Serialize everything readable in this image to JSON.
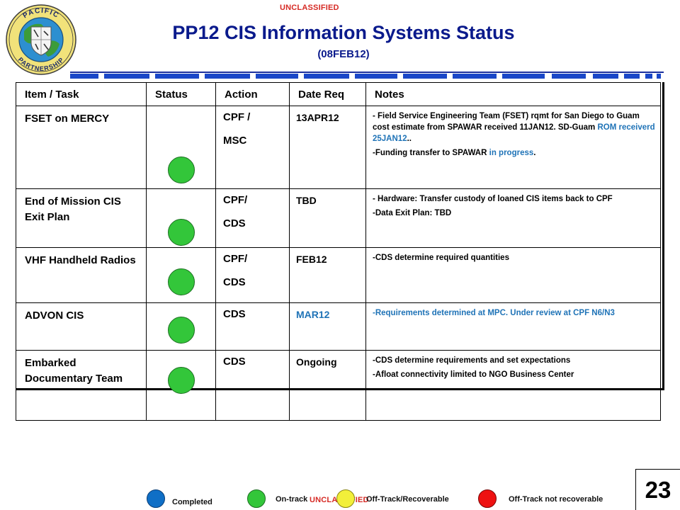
{
  "classification": {
    "top": "UNCLASSIFIED",
    "bottom": "UNCLASSIFIED"
  },
  "logo": {
    "text_top": "PACIFIC",
    "text_bottom": "PARTNERSHIP"
  },
  "header": {
    "title": "PP12 CIS Information Systems Status",
    "subtitle": "(08FEB12)"
  },
  "table": {
    "columns": [
      "Item / Task",
      "Status",
      "Action",
      "Date Req",
      "Notes"
    ],
    "rows": [
      {
        "item": "FSET on MERCY",
        "status": "On-track",
        "action": [
          "CPF /",
          "MSC"
        ],
        "date": "13APR12",
        "notes": [
          {
            "parts": [
              {
                "text": "- Field Service Engineering Team (FSET) rqmt   for San Diego to Guam cost estimate from SPAWAR received 11JAN12. SD-Guam ",
                "color": "#000000"
              },
              {
                "text": "ROM  receiverd 25JAN12",
                "color": "#1f73b7"
              },
              {
                "text": "..",
                "color": "#000000"
              }
            ]
          },
          {
            "parts": [
              {
                "text": "-Funding transfer  to SPAWAR ",
                "color": "#000000"
              },
              {
                "text": "in progress",
                "color": "#1f73b7"
              },
              {
                "text": ".",
                "color": "#000000"
              }
            ]
          }
        ]
      },
      {
        "item": "End of Mission CIS Exit Plan",
        "status": "On-track",
        "action": [
          "CPF/",
          "CDS"
        ],
        "date": "TBD",
        "notes": [
          {
            "parts": [
              {
                "text": "- Hardware: Transfer custody of loaned CIS items back to CPF",
                "color": "#000000"
              }
            ]
          },
          {
            "parts": [
              {
                "text": "-Data Exit Plan: TBD",
                "color": "#000000"
              }
            ]
          }
        ]
      },
      {
        "item": "VHF Handheld Radios",
        "status": "On-track",
        "action": [
          "CPF/",
          "CDS"
        ],
        "date": "FEB12",
        "notes": [
          {
            "parts": [
              {
                "text": "-CDS determine required quantities",
                "color": "#000000"
              }
            ]
          }
        ]
      },
      {
        "item": "ADVON CIS",
        "status": "On-track",
        "action": [
          "CDS"
        ],
        "date": "MAR12",
        "date_color": "#1f73b7",
        "notes": [
          {
            "parts": [
              {
                "text": "-Requirements determined at MPC. Under review at CPF N6/N3",
                "color": "#1f73b7"
              }
            ]
          }
        ]
      },
      {
        "item": "Embarked Documentary Team",
        "status": "On-track",
        "action": [
          "CDS"
        ],
        "date": "Ongoing",
        "notes": [
          {
            "parts": [
              {
                "text": "-CDS determine requirements and set expectations",
                "color": "#000000"
              }
            ]
          },
          {
            "parts": [
              {
                "text": "-Afloat connectivity limited to NGO Business Center",
                "color": "#000000"
              }
            ]
          }
        ]
      }
    ]
  },
  "legend": [
    {
      "label": "Completed",
      "color": "#0f6fc6",
      "border": "#0a3f78"
    },
    {
      "label": "On-track",
      "color": "#33c63a",
      "border": "#1d6f22"
    },
    {
      "label": "Off-Track/Recoverable",
      "color": "#f2ef3a",
      "border": "#8a8612"
    },
    {
      "label": "Off-Track  not recoverable",
      "color": "#ee1111",
      "border": "#7a0606"
    }
  ],
  "colors": {
    "title": "#0a1a8c",
    "classification": "#d62a24",
    "status_on_track": "#33c63a",
    "accent_blue": "#1f73b7"
  },
  "page_number": "23"
}
